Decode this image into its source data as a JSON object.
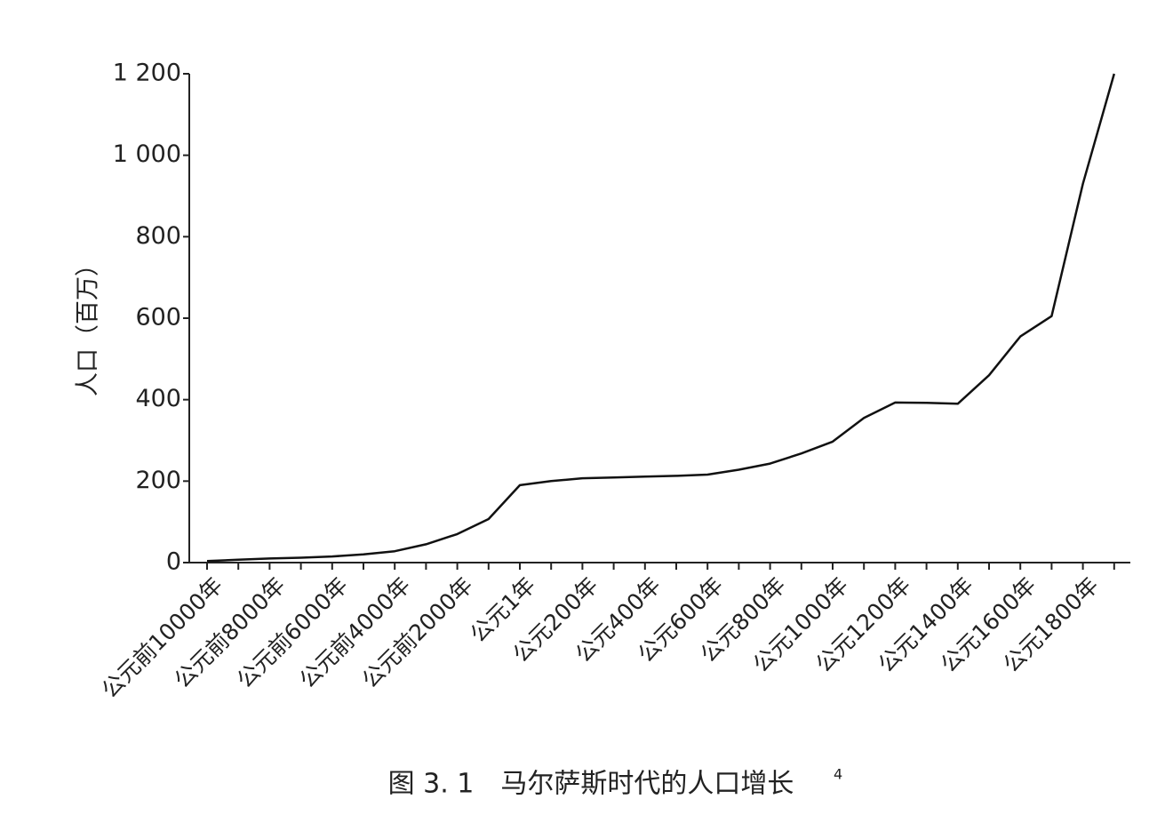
{
  "chart_data": {
    "type": "line",
    "title": "图 3. 1　马尔萨斯时代的人口增长",
    "title_footnote": "4",
    "y_label": "人口（百万）",
    "categories": [
      "公元前10000年",
      null,
      "公元前8000年",
      null,
      "公元前6000年",
      null,
      "公元前4000年",
      null,
      "公元前2000年",
      null,
      "公元1年",
      null,
      "公元200年",
      null,
      "公元400年",
      null,
      "公元600年",
      null,
      "公元800年",
      null,
      "公元1000年",
      null,
      "公元1200年",
      null,
      "公元1400年",
      null,
      "公元1600年",
      null,
      "公元1800年",
      null
    ],
    "values": [
      4,
      7,
      10,
      12,
      15,
      20,
      28,
      45,
      70,
      107,
      190,
      200,
      207,
      209,
      211,
      213,
      216,
      228,
      243,
      268,
      297,
      355,
      393,
      392,
      390,
      460,
      555,
      605,
      930,
      1200
    ],
    "color": "#111111",
    "ylim": [
      0,
      1200
    ],
    "yticks": [
      0,
      200,
      400,
      600,
      800,
      {
        "value": 1000,
        "label": "1 000"
      },
      {
        "value": 1200,
        "label": "1 200"
      }
    ],
    "grid": false
  }
}
